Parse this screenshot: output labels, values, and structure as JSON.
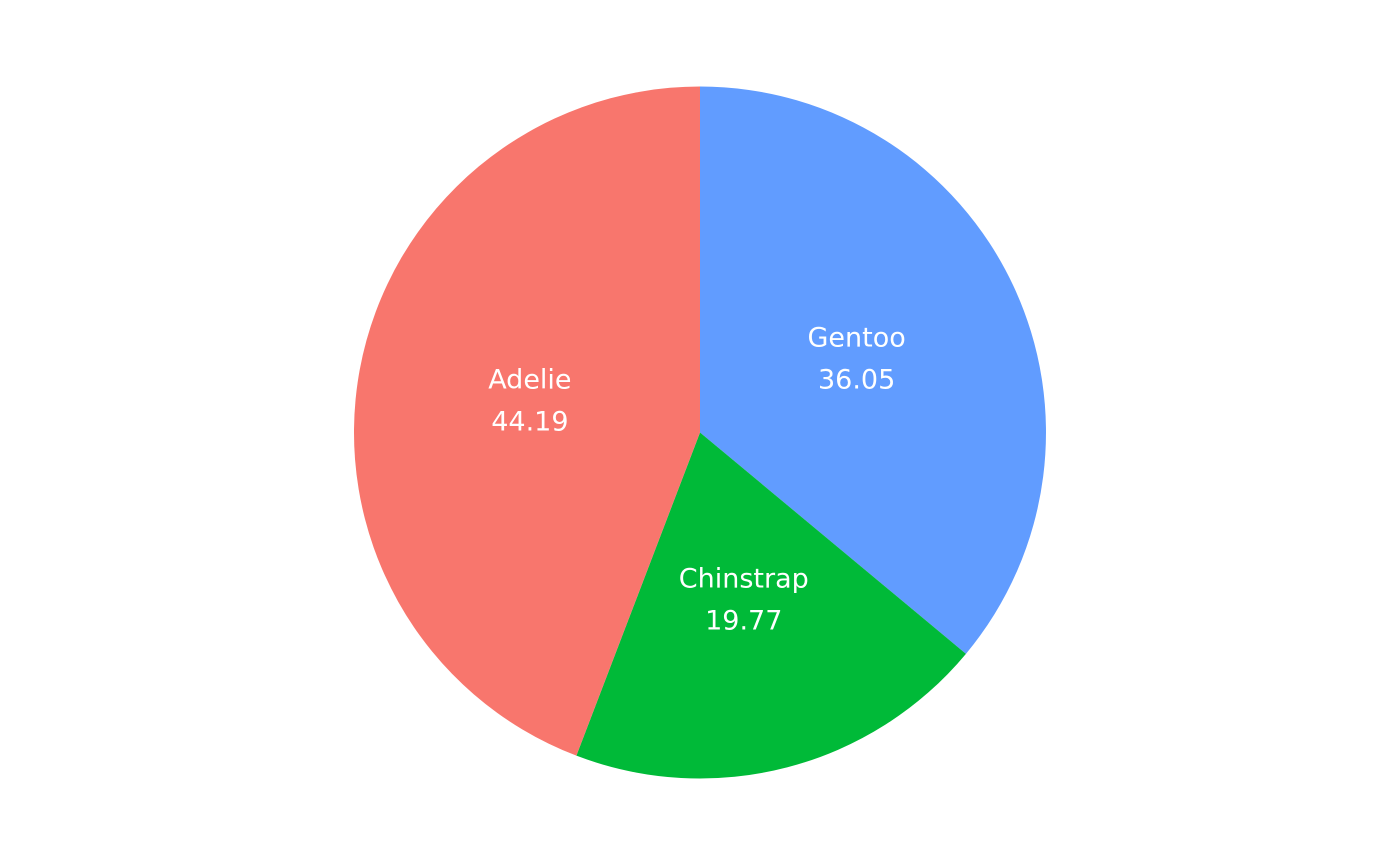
{
  "chart_data": {
    "type": "pie",
    "categories": [
      "Gentoo",
      "Chinstrap",
      "Adelie"
    ],
    "values": [
      36.05,
      19.77,
      44.19
    ],
    "value_labels": [
      "36.05",
      "19.77",
      "44.19"
    ],
    "colors": [
      "#619cff",
      "#00ba38",
      "#f8766d"
    ],
    "start_angle_deg": 0,
    "direction": "clockwise",
    "legend": "none"
  }
}
